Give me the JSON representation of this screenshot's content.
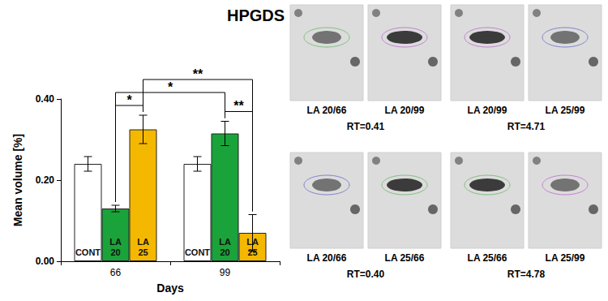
{
  "chart_data": {
    "type": "bar",
    "title": "HPGDS",
    "x_label": "Days",
    "y_label": "Mean volume [%]",
    "categories": [
      "66",
      "99"
    ],
    "series": [
      {
        "name": "CONT",
        "color": "#ffffff",
        "values": [
          0.24,
          0.24
        ],
        "errors": [
          0.018,
          0.018
        ]
      },
      {
        "name": "LA 20",
        "color": "#1aa33a",
        "values": [
          0.13,
          0.315
        ],
        "errors": [
          0.008,
          0.03
        ]
      },
      {
        "name": "LA 25",
        "color": "#f5b800",
        "values": [
          0.325,
          0.07
        ],
        "errors": [
          0.035,
          0.045
        ]
      }
    ],
    "ylim": [
      0,
      0.4
    ],
    "yticks": [
      {
        "value": 0,
        "label": "0.00"
      },
      {
        "value": 0.2,
        "label": "0.20"
      },
      {
        "value": 0.4,
        "label": "0.40"
      }
    ],
    "grid": false,
    "significance": [
      {
        "from": {
          "category": "99",
          "series": "LA 20"
        },
        "to": {
          "category": "99",
          "series": "LA 25"
        },
        "label": "**"
      },
      {
        "from": {
          "category": "66",
          "series": "LA 20"
        },
        "to": {
          "category": "66",
          "series": "LA 25"
        },
        "label": "*"
      },
      {
        "from": {
          "category": "66",
          "series": "LA 20"
        },
        "to": {
          "category": "99",
          "series": "LA 20"
        },
        "label": "*"
      },
      {
        "from": {
          "category": "66",
          "series": "LA 25"
        },
        "to": {
          "category": "99",
          "series": "LA 25"
        },
        "label": "**"
      }
    ]
  },
  "panels": [
    {
      "images": [
        "LA 20/66",
        "LA 20/99"
      ],
      "rt": "RT=0.41"
    },
    {
      "images": [
        "LA 20/99",
        "LA 25/99"
      ],
      "rt": "RT=4.71"
    },
    {
      "images": [
        "LA 20/66",
        "LA 25/66"
      ],
      "rt": "RT=0.40"
    },
    {
      "images": [
        "LA 25/66",
        "LA 25/99"
      ],
      "rt": "RT=4.78"
    }
  ]
}
